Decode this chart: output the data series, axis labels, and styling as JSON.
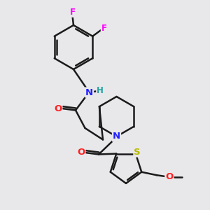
{
  "bg_color": "#e8e8eb",
  "atom_colors": {
    "C": "#000000",
    "N": "#2020ff",
    "O": "#ff2020",
    "S": "#cccc00",
    "F": "#ff00ff",
    "H": "#20a0a0"
  },
  "bond_color": "#1a1a1a",
  "bond_width": 1.8,
  "figsize": [
    3.0,
    3.0
  ],
  "dpi": 100,
  "xlim": [
    0,
    10
  ],
  "ylim": [
    0,
    10
  ]
}
